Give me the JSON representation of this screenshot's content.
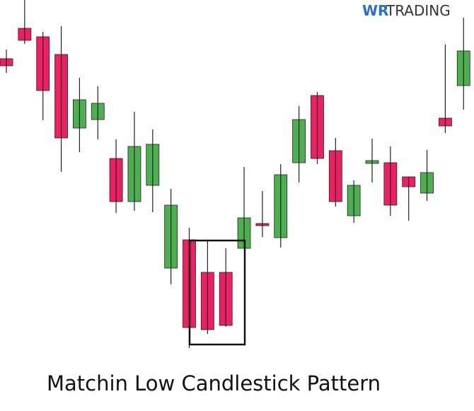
{
  "chart_data": {
    "type": "candlestick",
    "title": "Matchin Low Candlestick Pattern",
    "logo": {
      "mark": "WR",
      "text": "TRADING"
    },
    "up_color": "#4cb050",
    "down_color": "#ec2063",
    "ylim": [
      0,
      581
    ],
    "open": [
      498,
      541,
      529,
      504,
      400,
      412,
      357,
      296,
      319,
      202,
      242,
      196,
      196,
      230,
      265,
      245,
      351,
      446,
      368,
      276,
      350,
      351,
      331,
      308,
      414,
      460
    ],
    "high": [
      511,
      581,
      536,
      544,
      471,
      459,
      384,
      423,
      398,
      314,
      259,
      242,
      230,
      345,
      311,
      349,
      431,
      451,
      386,
      326,
      385,
      374,
      331,
      369,
      518,
      556
    ],
    "low": [
      478,
      519,
      411,
      338,
      366,
      384,
      280,
      283,
      281,
      179,
      89,
      109,
      119,
      230,
      246,
      231,
      323,
      349,
      289,
      266,
      323,
      276,
      269,
      297,
      393,
      426
    ],
    "close": [
      488,
      524,
      453,
      386,
      440,
      435,
      296,
      374,
      377,
      291,
      118,
      115,
      121,
      273,
      262,
      334,
      412,
      357,
      296,
      319,
      354,
      291,
      317,
      337,
      403,
      509
    ]
  }
}
